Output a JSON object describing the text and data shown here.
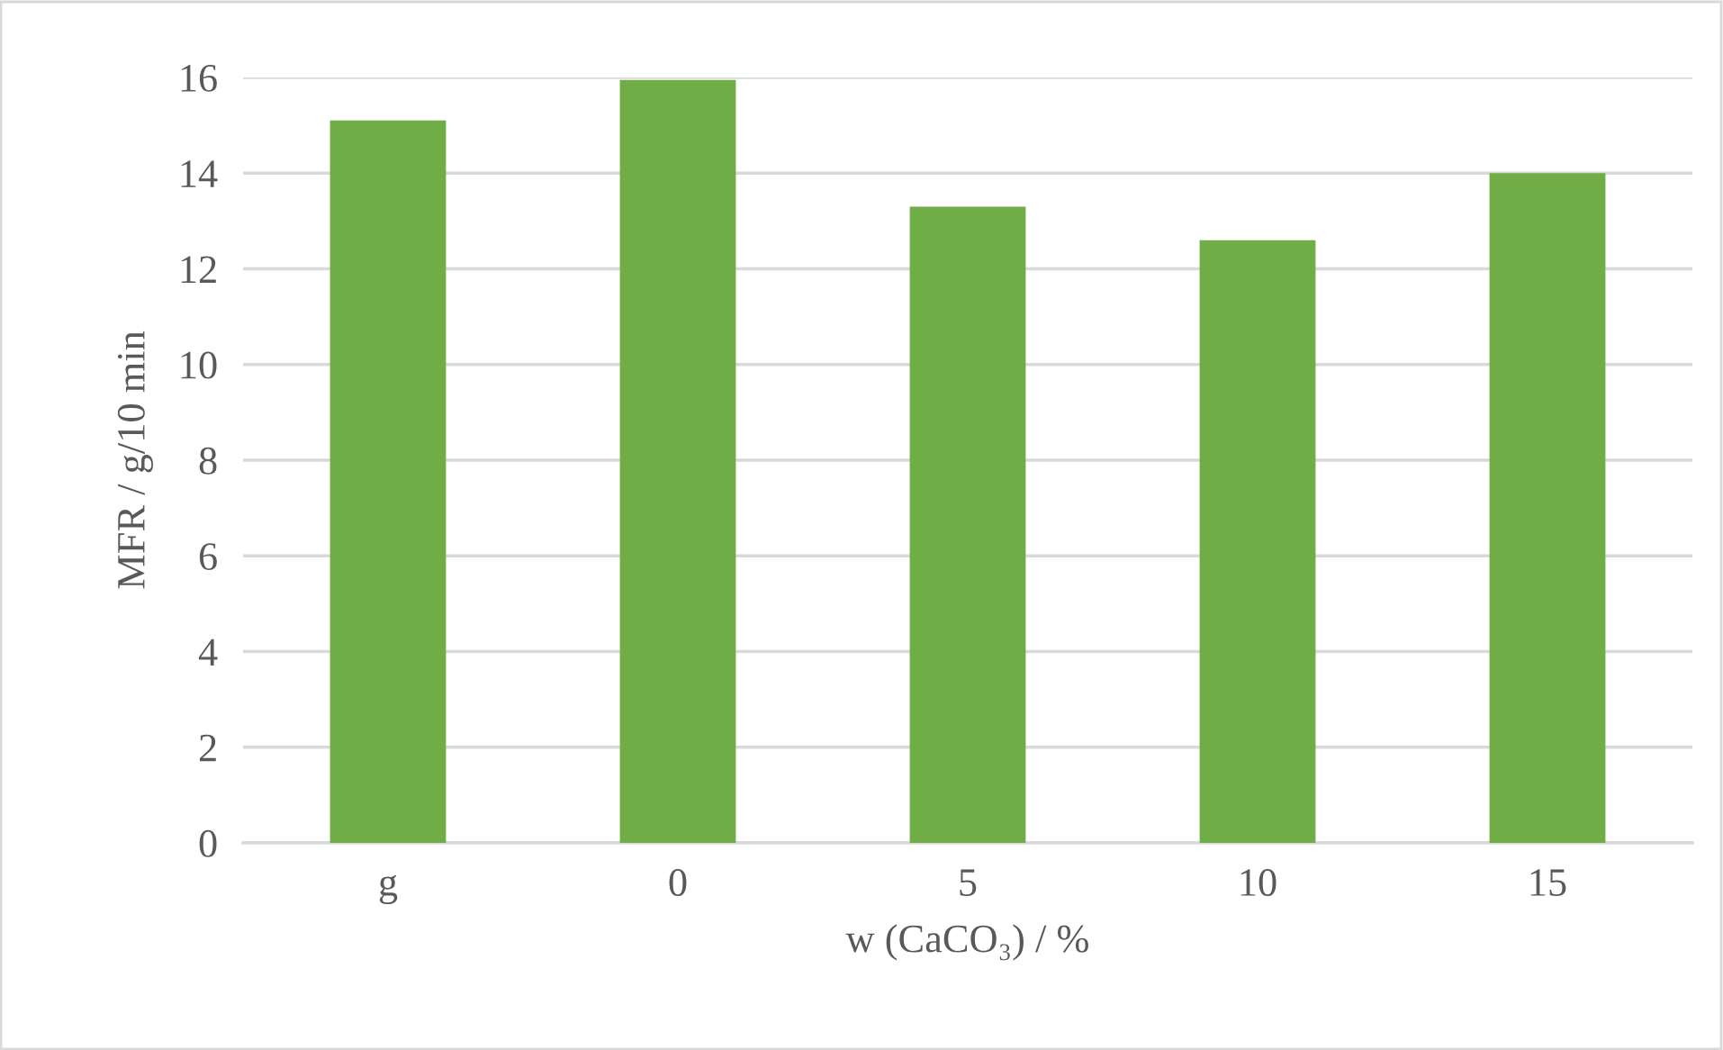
{
  "chart_data": {
    "type": "bar",
    "categories": [
      "g",
      "0",
      "5",
      "10",
      "15"
    ],
    "values": [
      15.1,
      15.95,
      13.3,
      12.6,
      14.0
    ],
    "color": "#70ad47",
    "xlabel": "w (CaCO₃) / %",
    "ylabel": "MFR / g/10 min",
    "ylim": [
      0,
      16
    ],
    "yticks": [
      0,
      2,
      4,
      6,
      8,
      10,
      12,
      14,
      16
    ],
    "grid": "y",
    "legend": false
  }
}
